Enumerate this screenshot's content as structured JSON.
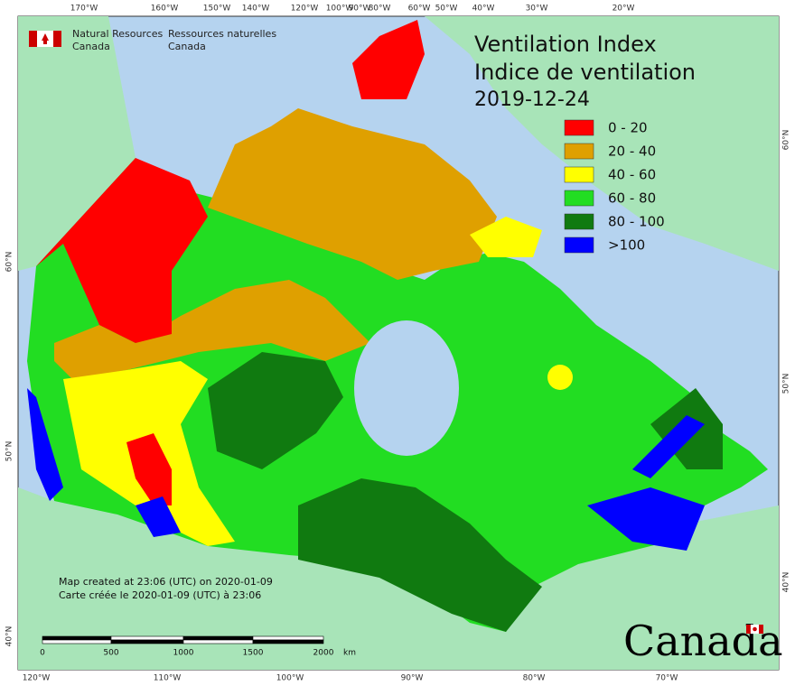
{
  "org": {
    "en_line1": "Natural Resources",
    "en_line2": "Canada",
    "fr_line1": "Ressources naturelles",
    "fr_line2": "Canada"
  },
  "title": {
    "line1": "Ventilation Index",
    "line2": "Indice de ventilation",
    "date": "2019-12-24"
  },
  "legend": [
    {
      "label": "0 - 20",
      "color": "#ff0000"
    },
    {
      "label": "20 - 40",
      "color": "#dfa000"
    },
    {
      "label": "40 - 60",
      "color": "#ffff00"
    },
    {
      "label": "60 - 80",
      "color": "#22dd22"
    },
    {
      "label": "80 - 100",
      "color": "#107a10"
    },
    {
      "label": ">100",
      "color": "#0000ff"
    }
  ],
  "graticule": {
    "top": [
      "170°W",
      "160°W",
      "150°W",
      "140°W",
      "120°W",
      "100°W",
      "90°W",
      "80°W",
      "60°W",
      "50°W",
      "40°W",
      "30°W",
      "20°W"
    ],
    "bottom": [
      "120°W",
      "110°W",
      "100°W",
      "90°W",
      "80°W",
      "70°W"
    ],
    "left": [
      "60°N",
      "50°N",
      "40°N"
    ],
    "right": [
      "60°N",
      "50°N",
      "40°N"
    ]
  },
  "notes": [
    "Map created at 23:06 (UTC) on 2020-01-09",
    "Carte créée le 2020-01-09 (UTC) à 23:06"
  ],
  "scale_bar": {
    "labels": [
      "0",
      "500",
      "1000",
      "1500",
      "2000"
    ],
    "unit": "km"
  },
  "wordmark": "Canada"
}
